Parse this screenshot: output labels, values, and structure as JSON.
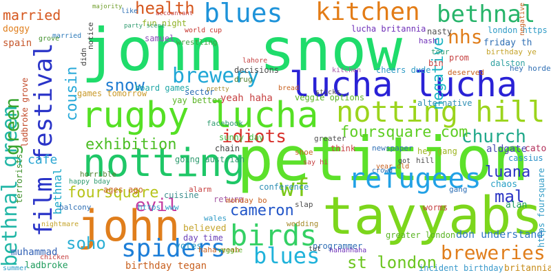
{
  "words": [
    {
      "text": "john snow",
      "color": "#1fdc6b"
    },
    {
      "text": "petition",
      "color": "#5ce12a"
    },
    {
      "text": "tayyabs",
      "color": "#7cd61c"
    },
    {
      "text": "lucha lucha",
      "color": "#2a22d6"
    },
    {
      "text": "rugby lucha",
      "color": "#55e024"
    },
    {
      "text": "notting",
      "color": "#1fc767"
    },
    {
      "text": "john",
      "color": "#e07e1c"
    },
    {
      "text": "kitchen",
      "color": "#e37c16"
    },
    {
      "text": "blues",
      "color": "#1e93d9"
    },
    {
      "text": "bethnal",
      "color": "#27b46a"
    },
    {
      "text": "notting hill",
      "color": "#9bd41c"
    },
    {
      "text": "refugees",
      "color": "#22a1e5"
    },
    {
      "text": "birds",
      "color": "#34d064"
    },
    {
      "text": "spiders",
      "color": "#1e7fd8"
    },
    {
      "text": "film festival",
      "color": "#2a34c8"
    },
    {
      "text": "bethnal green",
      "color": "#21b6a6"
    },
    {
      "text": "brewery",
      "color": "#20a7d6"
    },
    {
      "text": "snow",
      "color": "#1f7cd1"
    },
    {
      "text": "cousin",
      "color": "#25a8d8"
    },
    {
      "text": "church",
      "color": "#20a88a"
    },
    {
      "text": "exhibition",
      "color": "#4bbd23"
    },
    {
      "text": "idiots",
      "color": "#d8302b"
    },
    {
      "text": "evil",
      "color": "#c33ba0"
    },
    {
      "text": "wf",
      "color": "#7ac818"
    },
    {
      "text": "foursquare",
      "color": "#b7c41b"
    },
    {
      "text": "foursquare com",
      "color": "#5fce24"
    },
    {
      "text": "cameron",
      "color": "#2155c8"
    },
    {
      "text": "soho",
      "color": "#2aaed4"
    },
    {
      "text": "blues",
      "color": "#1fb2da"
    },
    {
      "text": "breweries",
      "color": "#e07e1c"
    },
    {
      "text": "st london",
      "color": "#6cc51f"
    },
    {
      "text": "health",
      "color": "#d6581f"
    },
    {
      "text": "married",
      "color": "#d6581f"
    },
    {
      "text": "nhs",
      "color": "#e07e1c"
    },
    {
      "text": "negative",
      "color": "#1bb4c2"
    },
    {
      "text": "luana",
      "color": "#2a33c4"
    },
    {
      "text": "mal",
      "color": "#2a33c4"
    },
    {
      "text": "cafe",
      "color": "#2aa6d2"
    },
    {
      "text": "green",
      "color": "#3aa531"
    },
    {
      "text": "bethnal",
      "color": "#1ea9c9"
    },
    {
      "text": "fun night",
      "color": "#8fb225"
    },
    {
      "text": "board games",
      "color": "#1fa7a6"
    },
    {
      "text": "games tomorrow",
      "color": "#c99a2a"
    },
    {
      "text": "sunny day",
      "color": "#3fbd41"
    },
    {
      "text": "yeah haha",
      "color": "#c64141"
    },
    {
      "text": "veggie options",
      "color": "#5ab424"
    },
    {
      "text": "hey gang",
      "color": "#9cb41f"
    },
    {
      "text": "aldgate",
      "color": "#444ab1"
    },
    {
      "text": "cato",
      "color": "#b22f5a"
    },
    {
      "text": "cassius",
      "color": "#2a90c8"
    },
    {
      "text": "chaos",
      "color": "#28a0c5"
    },
    {
      "text": "alan",
      "color": "#21a05f"
    },
    {
      "text": "don understand",
      "color": "#3178c4"
    },
    {
      "text": "britannia",
      "color": "#c68b18"
    },
    {
      "text": "incident birthday",
      "color": "#3b9acb"
    },
    {
      "text": "birthday tegan",
      "color": "#c8601f"
    },
    {
      "text": "believed",
      "color": "#c4a32a"
    },
    {
      "text": "day time",
      "color": "#6a3fb8"
    },
    {
      "text": "votes",
      "color": "#2f9bc6"
    },
    {
      "text": "muhammad",
      "color": "#2f5fb4"
    },
    {
      "text": "ladbroke",
      "color": "#1f9c5c"
    },
    {
      "text": "ladbroke grove",
      "color": "#c24a2a"
    },
    {
      "text": "terrorists",
      "color": "#3f8f2a"
    },
    {
      "text": "spain",
      "color": "#c6562a"
    },
    {
      "text": "doggy",
      "color": "#e07e1c"
    },
    {
      "text": "married",
      "color": "#2a78b8"
    },
    {
      "text": "majority",
      "color": "#6f9d2a"
    },
    {
      "text": "samuel",
      "color": "#8a4fb8"
    },
    {
      "text": "wrestling",
      "color": "#3fa13f"
    },
    {
      "text": "world cup",
      "color": "#c4302a"
    },
    {
      "text": "lucha britannia",
      "color": "#6f2fb8"
    },
    {
      "text": "london https",
      "color": "#2f9bc6"
    },
    {
      "text": "birthday ye",
      "color": "#c4a32a"
    },
    {
      "text": "dalston",
      "color": "#2fa1a1"
    },
    {
      "text": "prom",
      "color": "#c64141"
    },
    {
      "text": "hey horde",
      "color": "#2f6fb4"
    },
    {
      "text": "deserved",
      "color": "#c8601f"
    },
    {
      "text": "cheers dude",
      "color": "#2f9bc6"
    },
    {
      "text": "decisions",
      "color": "#4f4f4f"
    },
    {
      "text": "lahore",
      "color": "#c64141"
    },
    {
      "text": "drug",
      "color": "#4f7f2f"
    },
    {
      "text": "sector",
      "color": "#2f6fb4"
    },
    {
      "text": "yay better",
      "color": "#5ab424"
    },
    {
      "text": "pretty",
      "color": "#a58a2a"
    },
    {
      "text": "chain",
      "color": "#3f3f3f"
    },
    {
      "text": "going austrian",
      "color": "#2f9b6f"
    },
    {
      "text": "alarm",
      "color": "#c64141"
    },
    {
      "text": "cuisine",
      "color": "#3f8f8f"
    },
    {
      "text": "return",
      "color": "#a55aa5"
    },
    {
      "text": "monday bo",
      "color": "#c8601f"
    },
    {
      "text": "conference",
      "color": "#2f8fb4"
    },
    {
      "text": "programmer",
      "color": "#2f6fb4"
    },
    {
      "text": "greater london",
      "color": "#5ab424"
    },
    {
      "text": "worms",
      "color": "#c64141"
    },
    {
      "text": "gang",
      "color": "#2f6fb4"
    },
    {
      "text": "slap",
      "color": "#4f4f4f"
    },
    {
      "text": "wedding",
      "color": "#a58a2a"
    },
    {
      "text": "hahahhaha",
      "color": "#6f2fb8"
    },
    {
      "text": "tut",
      "color": "#3f3f3f"
    },
    {
      "text": "haha yeah",
      "color": "#c8601f"
    },
    {
      "text": "ages ago",
      "color": "#c8601f"
    },
    {
      "text": "https www",
      "color": "#2f9bc6"
    },
    {
      "text": "balcony",
      "color": "#2f6fb4"
    },
    {
      "text": "nightmare",
      "color": "#c4a32a"
    },
    {
      "text": "horrible",
      "color": "#4f7f2f"
    },
    {
      "text": "happy bday",
      "color": "#2f9b6f"
    },
    {
      "text": "chicken",
      "color": "#c64141"
    },
    {
      "text": "summer",
      "color": "#2f9bc6"
    },
    {
      "text": "grove",
      "color": "#3f8f2a"
    },
    {
      "text": "negative",
      "color": "#c8601f"
    },
    {
      "text": "friday th",
      "color": "#2f6fb4"
    },
    {
      "text": "bin",
      "color": "#c64141"
    },
    {
      "text": "nasty",
      "color": "#4f4f4f"
    },
    {
      "text": "hash",
      "color": "#6f2fb8"
    },
    {
      "text": "tour",
      "color": "#2f9b6f"
    },
    {
      "text": "alternative",
      "color": "#2f8fb4"
    },
    {
      "text": "think",
      "color": "#c64141"
    },
    {
      "text": "greater",
      "color": "#4f4f4f"
    },
    {
      "text": "newspaper",
      "color": "#2f6fb4"
    },
    {
      "text": "facebook",
      "color": "#2f9b6f"
    },
    {
      "text": "shoe",
      "color": "#c8601f"
    },
    {
      "text": "say hi",
      "color": "#c64141"
    },
    {
      "text": "year old",
      "color": "#c8601f"
    },
    {
      "text": "hill",
      "color": "#4f4f4f"
    },
    {
      "text": "got",
      "color": "#3f3f3f"
    },
    {
      "text": "crowd",
      "color": "#2f6fb4"
    },
    {
      "text": "kitchen",
      "color": "#a55aa5"
    },
    {
      "text": "didn",
      "color": "#3f3f3f"
    },
    {
      "text": "notice",
      "color": "#3f3f3f"
    },
    {
      "text": "wales",
      "color": "#2f9bc6"
    },
    {
      "text": "veggie",
      "color": "#5ab424"
    },
    {
      "text": "https foursquare",
      "color": "#2f9bc6"
    },
    {
      "text": "sticks",
      "color": "#4f4f4f"
    },
    {
      "text": "bread",
      "color": "#c8601f"
    },
    {
      "text": "like",
      "color": "#2f6fb4"
    },
    {
      "text": "accountant",
      "color": "#c64141"
    },
    {
      "text": "party scene",
      "color": "#2f9b6f"
    }
  ]
}
